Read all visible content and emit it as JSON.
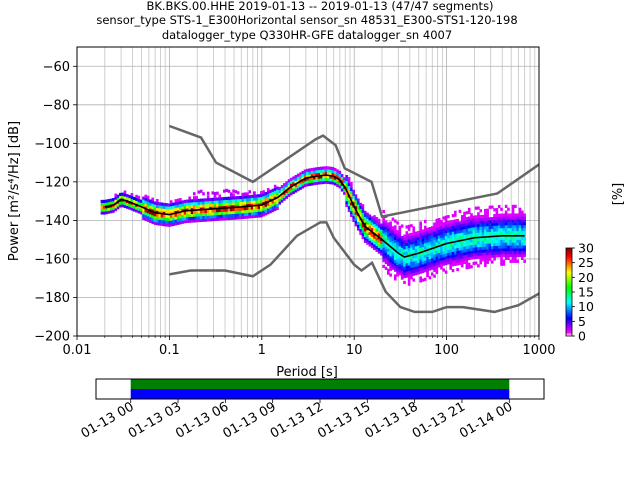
{
  "figure": {
    "title_lines": [
      "BK.BKS.00.HHE   2019-01-13 -- 2019-01-13  (47/47 segments)",
      "sensor_type STS-1_E300Horizontal sensor_sn 48531_E300-STS1-120-198",
      "datalogger_type Q330HR-GFE datalogger_sn 4007"
    ]
  },
  "chart_data": [
    {
      "type": "heatmap",
      "xlabel": "Period [s]",
      "ylabel": "Power [m²/s⁴/Hz] [dB]",
      "x_scale": "log",
      "xlim": [
        0.01,
        1000
      ],
      "ylim": [
        -200,
        -50
      ],
      "x_ticks": [
        {
          "value": 0.01,
          "label": "0.01"
        },
        {
          "value": 0.1,
          "label": "0.1"
        },
        {
          "value": 1,
          "label": "1"
        },
        {
          "value": 10,
          "label": "10"
        },
        {
          "value": 100,
          "label": "100"
        },
        {
          "value": 1000,
          "label": "1000"
        }
      ],
      "y_ticks": [
        {
          "value": -60,
          "label": "−60"
        },
        {
          "value": -80,
          "label": "−80"
        },
        {
          "value": -100,
          "label": "−100"
        },
        {
          "value": -120,
          "label": "−120"
        },
        {
          "value": -140,
          "label": "−140"
        },
        {
          "value": -160,
          "label": "−160"
        },
        {
          "value": -180,
          "label": "−180"
        },
        {
          "value": -200,
          "label": "−200"
        }
      ],
      "grid": true,
      "colorbar": {
        "label": "[%]",
        "range": [
          0,
          30
        ],
        "ticks": [
          {
            "value": 0,
            "label": "0"
          },
          {
            "value": 5,
            "label": "5"
          },
          {
            "value": 10,
            "label": "10"
          },
          {
            "value": 15,
            "label": "15"
          },
          {
            "value": 20,
            "label": "20"
          },
          {
            "value": 25,
            "label": "25"
          },
          {
            "value": 30,
            "label": "30"
          }
        ],
        "colors": [
          "#ffffff",
          "#ff00ff",
          "#0000ff",
          "#00ffff",
          "#00ff00",
          "#ffff00",
          "#ff0000",
          "#800000"
        ]
      },
      "noise_model_color": "#666666",
      "high_noise_model": [
        {
          "x": 0.1,
          "y": -91
        },
        {
          "x": 0.22,
          "y": -97
        },
        {
          "x": 0.32,
          "y": -110
        },
        {
          "x": 0.8,
          "y": -120
        },
        {
          "x": 3.8,
          "y": -98
        },
        {
          "x": 4.6,
          "y": -96
        },
        {
          "x": 6.3,
          "y": -101
        },
        {
          "x": 7.9,
          "y": -113
        },
        {
          "x": 15.4,
          "y": -120
        },
        {
          "x": 20,
          "y": -138
        },
        {
          "x": 354.8,
          "y": -126
        },
        {
          "x": 1000,
          "y": -111
        }
      ],
      "low_noise_model": [
        {
          "x": 0.1,
          "y": -168
        },
        {
          "x": 0.17,
          "y": -166
        },
        {
          "x": 0.4,
          "y": -166
        },
        {
          "x": 0.8,
          "y": -169
        },
        {
          "x": 1.24,
          "y": -163
        },
        {
          "x": 2.4,
          "y": -148
        },
        {
          "x": 4.3,
          "y": -141
        },
        {
          "x": 5,
          "y": -141
        },
        {
          "x": 6,
          "y": -149
        },
        {
          "x": 10,
          "y": -163
        },
        {
          "x": 12,
          "y": -166
        },
        {
          "x": 15.6,
          "y": -162
        },
        {
          "x": 21.9,
          "y": -177
        },
        {
          "x": 31.6,
          "y": -185
        },
        {
          "x": 45,
          "y": -187.5
        },
        {
          "x": 70,
          "y": -187.5
        },
        {
          "x": 100,
          "y": -185
        },
        {
          "x": 150,
          "y": -185
        },
        {
          "x": 330,
          "y": -187.5
        },
        {
          "x": 600,
          "y": -184
        },
        {
          "x": 1000,
          "y": -178
        }
      ],
      "mean_curve": [
        {
          "x": 0.02,
          "y": -133
        },
        {
          "x": 0.025,
          "y": -132
        },
        {
          "x": 0.03,
          "y": -129
        },
        {
          "x": 0.035,
          "y": -130
        },
        {
          "x": 0.05,
          "y": -133
        },
        {
          "x": 0.07,
          "y": -136
        },
        {
          "x": 0.1,
          "y": -137
        },
        {
          "x": 0.15,
          "y": -135
        },
        {
          "x": 0.3,
          "y": -134
        },
        {
          "x": 0.6,
          "y": -133
        },
        {
          "x": 1,
          "y": -132
        },
        {
          "x": 1.5,
          "y": -128
        },
        {
          "x": 2,
          "y": -123
        },
        {
          "x": 3,
          "y": -118
        },
        {
          "x": 4,
          "y": -117
        },
        {
          "x": 5,
          "y": -116.5
        },
        {
          "x": 6,
          "y": -117
        },
        {
          "x": 7,
          "y": -119
        },
        {
          "x": 8,
          "y": -123
        },
        {
          "x": 10,
          "y": -133
        },
        {
          "x": 13,
          "y": -143
        },
        {
          "x": 20,
          "y": -150
        },
        {
          "x": 30,
          "y": -157
        },
        {
          "x": 35,
          "y": -159
        },
        {
          "x": 50,
          "y": -157
        },
        {
          "x": 100,
          "y": -152
        },
        {
          "x": 200,
          "y": -149
        },
        {
          "x": 400,
          "y": -148
        },
        {
          "x": 700,
          "y": -148
        }
      ]
    },
    {
      "type": "bar",
      "title": "",
      "x_tick_labels": [
        "01-13 00",
        "01-13 03",
        "01-13 06",
        "01-13 09",
        "01-13 12",
        "01-13 15",
        "01-13 18",
        "01-13 21",
        "01-14 00"
      ],
      "xlim_hours": [
        -2.2,
        26.2
      ],
      "series": [
        {
          "color": "#008000",
          "start_hour": 0,
          "end_hour": 24
        },
        {
          "color": "#0000ff",
          "start_hour": 0,
          "end_hour": 24
        }
      ]
    }
  ]
}
